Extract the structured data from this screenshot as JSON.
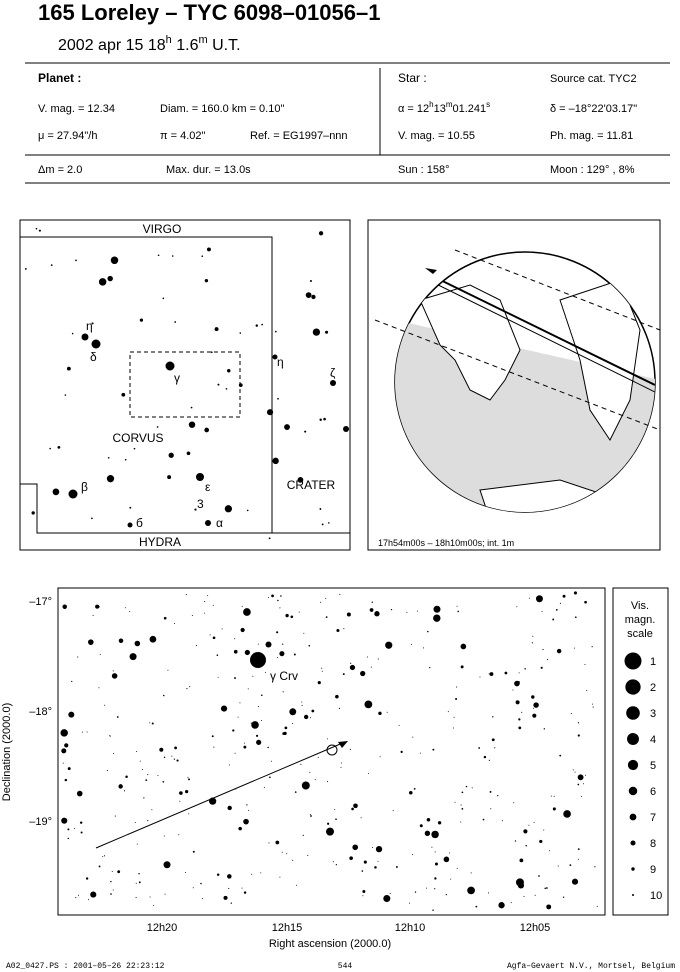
{
  "header": {
    "title": "165 Loreley  –  TYC 6098–01056–1",
    "date_parts": [
      "2002 apr 15  18",
      "h",
      " 1.6",
      "m",
      " U.T."
    ]
  },
  "planet": {
    "heading": "Planet :",
    "vmag": "V. mag. = 12.34",
    "diam": "Diam. = 160.0 km = 0.10\"",
    "mu": "μ =  27.94\"/h",
    "pi": "π =  4.02\"",
    "ref": "Ref. = EG1997–nnn",
    "dm": "Δm = 2.0",
    "maxdur": "Max. dur. = 13.0s"
  },
  "star": {
    "heading": "Star :",
    "source": "Source cat.  TYC2",
    "alpha_parts": [
      "α = 12",
      "h",
      "13",
      "m",
      "01.241",
      "s"
    ],
    "delta": "δ = –18°22'03.17\"",
    "vmag": "V. mag. = 10.55",
    "phmag": "Ph. mag. = 11.81",
    "sun": "Sun : 158°",
    "moon": "Moon : 129° ,  8%"
  },
  "finder": {
    "virgo": "VIRGO",
    "corvus": "CORVUS",
    "crater": "CRATER",
    "hydra": "HYDRA",
    "eta": "η",
    "delta": "δ",
    "gamma": "γ",
    "beta": "β",
    "epsilon": "ε",
    "three": "3",
    "six": "б",
    "alpha": "α",
    "zeta": "ζ",
    "eta_crt": "η"
  },
  "globe": {
    "caption": "17h54m00s – 18h10m00s; int.  1m"
  },
  "chart": {
    "star_label": "γ Crv",
    "xlabel": "Right ascension (2000.0)",
    "ylabel": "Declination (2000.0)",
    "xticks": [
      "12h20",
      "12h15",
      "12h10",
      "12h05"
    ],
    "yticks": [
      "–17°",
      "–18°",
      "–19°"
    ]
  },
  "scale": {
    "title": [
      "Vis.",
      "magn.",
      "scale"
    ],
    "mags": [
      1,
      2,
      3,
      4,
      5,
      6,
      7,
      8,
      9,
      10
    ]
  },
  "footer": {
    "left": "A02_0427.PS : 2001–05–26 22:23:12",
    "center": "544",
    "right": "Agfa–Gevaert N.V., Mortsel, Belgium"
  }
}
